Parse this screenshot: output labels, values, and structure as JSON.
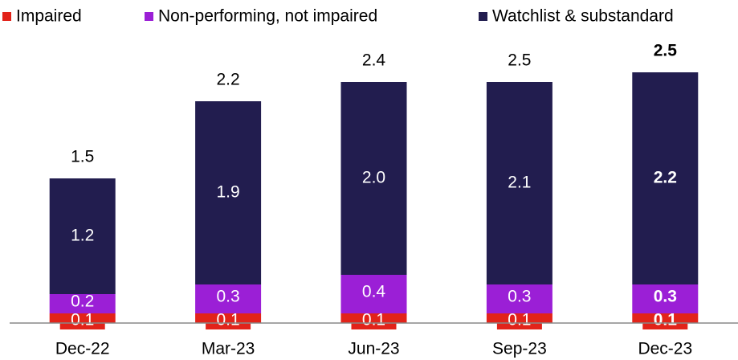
{
  "chart_data": {
    "type": "stacked_bar",
    "categories": [
      "Dec-22",
      "Mar-23",
      "Jun-23",
      "Sep-23",
      "Dec-23"
    ],
    "series": [
      {
        "name": "Impaired",
        "color": "#e2231a",
        "values": [
          0.1,
          0.1,
          0.1,
          0.1,
          0.1
        ]
      },
      {
        "name": "Non-performing, not impaired",
        "color": "#9b1fd6",
        "values": [
          0.2,
          0.3,
          0.4,
          0.3,
          0.3
        ]
      },
      {
        "name": "Watchlist & substandard",
        "color": "#221d4f",
        "values": [
          1.2,
          1.9,
          2.0,
          2.1,
          2.2
        ]
      }
    ],
    "totals": [
      1.5,
      2.2,
      2.4,
      2.5,
      2.5
    ],
    "ylim": [
      0,
      2.7
    ]
  }
}
